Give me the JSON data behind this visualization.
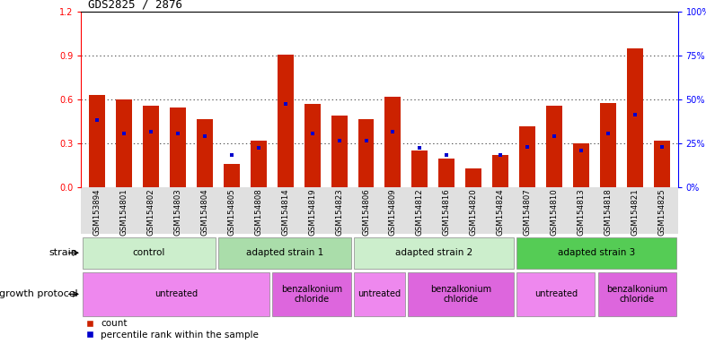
{
  "title": "GDS2825 / 2876",
  "samples": [
    "GSM153894",
    "GSM154801",
    "GSM154802",
    "GSM154803",
    "GSM154804",
    "GSM154805",
    "GSM154808",
    "GSM154814",
    "GSM154819",
    "GSM154823",
    "GSM154806",
    "GSM154809",
    "GSM154812",
    "GSM154816",
    "GSM154820",
    "GSM154824",
    "GSM154807",
    "GSM154810",
    "GSM154813",
    "GSM154818",
    "GSM154821",
    "GSM154825"
  ],
  "red_heights": [
    0.63,
    0.6,
    0.56,
    0.55,
    0.47,
    0.16,
    0.32,
    0.91,
    0.57,
    0.49,
    0.47,
    0.62,
    0.25,
    0.2,
    0.13,
    0.22,
    0.42,
    0.56,
    0.3,
    0.58,
    0.95,
    0.32
  ],
  "blue_values": [
    0.46,
    0.37,
    0.38,
    0.37,
    0.35,
    0.22,
    0.27,
    0.57,
    0.37,
    0.32,
    0.32,
    0.38,
    0.27,
    0.22,
    null,
    0.22,
    0.28,
    0.35,
    0.25,
    0.37,
    0.5,
    0.28
  ],
  "strain_groups": [
    {
      "label": "control",
      "start": 0,
      "end": 5,
      "color": "#cceecc"
    },
    {
      "label": "adapted strain 1",
      "start": 5,
      "end": 10,
      "color": "#aaddaa"
    },
    {
      "label": "adapted strain 2",
      "start": 10,
      "end": 16,
      "color": "#cceecc"
    },
    {
      "label": "adapted strain 3",
      "start": 16,
      "end": 22,
      "color": "#55cc55"
    }
  ],
  "protocol_groups": [
    {
      "label": "untreated",
      "start": 0,
      "end": 7,
      "color": "#ee88ee"
    },
    {
      "label": "benzalkonium\nchloride",
      "start": 7,
      "end": 10,
      "color": "#dd66dd"
    },
    {
      "label": "untreated",
      "start": 10,
      "end": 12,
      "color": "#ee88ee"
    },
    {
      "label": "benzalkonium\nchloride",
      "start": 12,
      "end": 16,
      "color": "#dd66dd"
    },
    {
      "label": "untreated",
      "start": 16,
      "end": 19,
      "color": "#ee88ee"
    },
    {
      "label": "benzalkonium\nchloride",
      "start": 19,
      "end": 22,
      "color": "#dd66dd"
    }
  ],
  "ylim_left": [
    0,
    1.2
  ],
  "ylim_right": [
    0,
    100
  ],
  "yticks_left": [
    0,
    0.3,
    0.6,
    0.9,
    1.2
  ],
  "yticks_right": [
    0,
    25,
    50,
    75,
    100
  ],
  "bar_color": "#cc2200",
  "blue_color": "#0000cc",
  "bg_color": "#ffffff",
  "tick_area_bg": "#e0e0e0"
}
